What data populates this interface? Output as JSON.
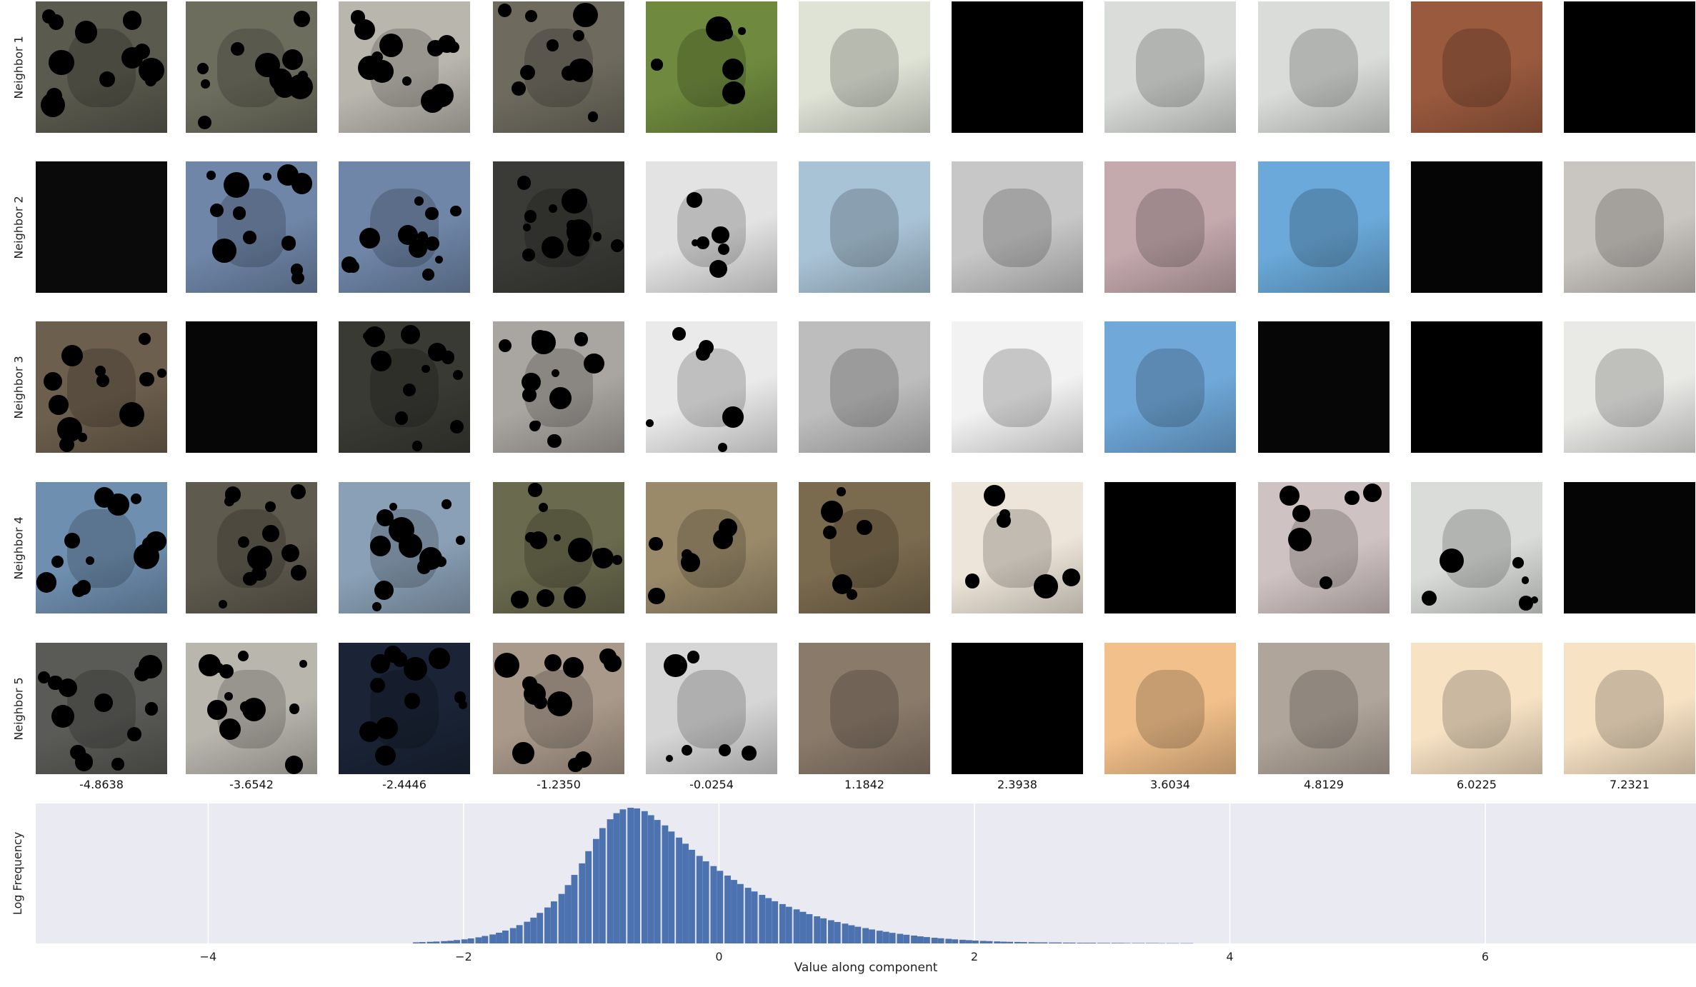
{
  "ylabel": "Log Frequency",
  "xlabel": "Value along component",
  "row_labels": [
    "Neighbor 1",
    "Neighbor 2",
    "Neighbor 3",
    "Neighbor 4",
    "Neighbor 5"
  ],
  "column_centers": [
    "-4.8638",
    "-3.6542",
    "-2.4446",
    "-1.2350",
    "-0.0254",
    "1.1842",
    "2.3938",
    "3.6034",
    "4.8129",
    "6.0225",
    "7.2321"
  ],
  "thumbnail_colors": [
    [
      "#5a5a4e",
      "#6d6d5e",
      "#b9b6ae",
      "#6e6a5e",
      "#6f8a3e",
      "#dfe3d6",
      "#000000",
      "#d9dcd9",
      "#d9dcd9",
      "#9a5a3e",
      "#000000"
    ],
    [
      "#0a0a0a",
      "#6f86a8",
      "#6f86a8",
      "#3a3a36",
      "#e3e3e3",
      "#a9c3d6",
      "#c7c7c7",
      "#c4a9ad",
      "#6aa9d9",
      "#050505",
      "#c9c5c0"
    ],
    [
      "#6d5f4d",
      "#060606",
      "#3a3a34",
      "#a9a5a0",
      "#eaeaea",
      "#bdbdbd",
      "#f2f2f2",
      "#6fa8d9",
      "#060606",
      "#000000",
      "#e9e9e6"
    ],
    [
      "#6f8fb0",
      "#5f5a4e",
      "#8aa0b6",
      "#6a6a4e",
      "#9a8a6a",
      "#7a6a4e",
      "#ede5d9",
      "#000000",
      "#cfc2c2",
      "#d9dcd9",
      "#050505"
    ],
    [
      "#5a5a56",
      "#b9b6ae",
      "#1a2436",
      "#a9998a",
      "#d6d6d6",
      "#8a7a6a",
      "#000000",
      "#f2c08a",
      "#b0a59a",
      "#f7e2c4",
      "#f7e2c4"
    ]
  ],
  "icons": [
    "bar-series"
  ],
  "colors": {
    "bar": "#4c72b0",
    "background": "#eaeaf2",
    "grid": "#ffffff"
  },
  "chart_data": {
    "type": "bar",
    "title": "",
    "xlabel": "Value along component",
    "ylabel": "Log Frequency",
    "xlim": [
      -5.35,
      7.65
    ],
    "xticks": [
      -4,
      -2,
      0,
      2,
      4,
      6
    ],
    "yticks": [],
    "grid": true,
    "bin_width": 0.054,
    "x": [
      -2.37,
      -2.32,
      -2.26,
      -2.21,
      -2.15,
      -2.1,
      -2.05,
      -1.99,
      -1.94,
      -1.88,
      -1.83,
      -1.77,
      -1.72,
      -1.67,
      -1.61,
      -1.56,
      -1.5,
      -1.45,
      -1.4,
      -1.34,
      -1.29,
      -1.23,
      -1.18,
      -1.13,
      -1.07,
      -1.02,
      -0.96,
      -0.91,
      -0.85,
      -0.8,
      -0.75,
      -0.69,
      -0.64,
      -0.58,
      -0.53,
      -0.48,
      -0.42,
      -0.37,
      -0.31,
      -0.26,
      -0.21,
      -0.15,
      -0.1,
      -0.04,
      0.01,
      0.07,
      0.12,
      0.17,
      0.23,
      0.28,
      0.34,
      0.39,
      0.44,
      0.5,
      0.55,
      0.61,
      0.66,
      0.71,
      0.77,
      0.82,
      0.88,
      0.93,
      0.99,
      1.04,
      1.09,
      1.15,
      1.2,
      1.26,
      1.31,
      1.36,
      1.42,
      1.47,
      1.53,
      1.58,
      1.63,
      1.69,
      1.74,
      1.8,
      1.85,
      1.91,
      1.96,
      2.01,
      2.07,
      2.12,
      2.18,
      2.23,
      2.28,
      2.34,
      2.39,
      2.45,
      2.5,
      2.55,
      2.61,
      2.66,
      2.72,
      2.77,
      2.83,
      2.88,
      2.93,
      2.99,
      3.04,
      3.1,
      3.15,
      3.2,
      3.26,
      3.31,
      3.37,
      3.42,
      3.47,
      3.53,
      3.58,
      3.64,
      3.69
    ],
    "values": [
      0.8,
      1.0,
      1.2,
      1.4,
      1.7,
      2.0,
      2.5,
      3.0,
      3.7,
      4.5,
      5.5,
      6.6,
      7.9,
      9.5,
      11.3,
      13.5,
      16.0,
      19.0,
      22.5,
      26.5,
      31.0,
      36.5,
      43.0,
      50.5,
      59.0,
      68.0,
      77.0,
      85.0,
      91.5,
      96.0,
      98.8,
      100.0,
      99.5,
      97.5,
      94.5,
      91.0,
      87.0,
      82.5,
      78.0,
      73.5,
      69.0,
      64.5,
      60.5,
      57.0,
      53.5,
      50.0,
      46.8,
      43.8,
      41.0,
      38.3,
      35.8,
      33.4,
      31.1,
      29.0,
      27.0,
      25.1,
      23.3,
      21.6,
      20.0,
      18.5,
      17.1,
      15.8,
      14.6,
      13.4,
      12.3,
      11.3,
      10.3,
      9.4,
      8.6,
      7.8,
      7.1,
      6.4,
      5.8,
      5.2,
      4.7,
      4.2,
      3.8,
      3.4,
      3.0,
      2.7,
      2.4,
      2.1,
      1.9,
      1.7,
      1.5,
      1.3,
      1.2,
      1.1,
      1.0,
      0.9,
      0.8,
      0.8,
      0.7,
      0.7,
      0.6,
      0.6,
      0.5,
      0.5,
      0.5,
      0.4,
      0.4,
      0.4,
      0.4,
      0.3,
      0.3,
      0.3,
      0.3,
      0.3,
      0.2,
      0.2,
      0.2,
      0.2,
      0.2
    ]
  }
}
